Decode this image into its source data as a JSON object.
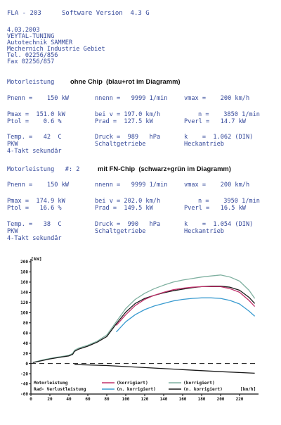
{
  "header": {
    "model": "FLA - 203",
    "software": "Software Version  4.3 G"
  },
  "company": {
    "date": "4.03.2003",
    "line1": "VEYTAL-TUNING",
    "line2": "Autotechnik SAMMER",
    "line3": "Mechernich Industrie Gebiet",
    "tel": "Tel. 02256/856",
    "fax": "Fax 02256/857"
  },
  "run1": {
    "title": "Motorleistung",
    "note": "ohne Chip  (blau+rot im Diagramm)",
    "pnenn": "Pnenn =    150 kW",
    "nnenn": "nnenn =   9999 1/min",
    "vmax": "vmax =    200 km/h",
    "pmax": "Pmax =  151.0 kW",
    "ptol": "Ptol =    0.6 %",
    "beiv": "bei v = 197.0 km/h",
    "prad": "Prad =  127.5 kW",
    "n": "n =    3850 1/min",
    "pverl": "Pverl =   14.7 kW",
    "temp": "Temp. =   42  C",
    "pkw": "PKW",
    "takt": "4-Takt sekundär",
    "druck": "Druck =  989   hPa",
    "getriebe": "Schaltgetriebe",
    "k": "k    =  1.062 (DIN)",
    "antrieb": "Heckantrieb"
  },
  "run2": {
    "title": "Motorleistung   #: 2",
    "note": "mit FN-Chip  (schwarz+grün im Diagramm)",
    "pnenn": "Pnenn =    150 kW",
    "nnenn": "nnenn =   9999 1/min",
    "vmax": "vmax =    200 km/h",
    "pmax": "Pmax =  174.9 kW",
    "ptol": "Ptol =   16.6 %",
    "beiv": "bei v = 202.0 km/h",
    "prad": "Prad =  149.5 kW",
    "n": "n =    3950 1/min",
    "pverl": "Pverl =   16.5 kW",
    "temp": "Temp. =   38  C",
    "pkw": "PKW",
    "takt": "4-Takt sekundär",
    "druck": "Druck =  990   hPa",
    "getriebe": "Schaltgetriebe",
    "k": "k    =  1.054 (DIN)",
    "antrieb": "Heckantrieb"
  },
  "chart_data": {
    "type": "line",
    "y_unit": "[kW]",
    "x_unit": "[km/h]",
    "xlim": [
      0,
      240
    ],
    "ylim": [
      -60,
      200
    ],
    "x_ticks": [
      "0",
      "20",
      "40",
      "60",
      "80",
      "100",
      "120",
      "140",
      "160",
      "180",
      "200",
      "220"
    ],
    "y_ticks": [
      "200",
      "180",
      "160",
      "140",
      "120",
      "100",
      "80",
      "60",
      "40",
      "20",
      "0",
      "-20",
      "-40",
      "-60"
    ],
    "legend": {
      "row1_label": "Motorleistung",
      "row2_label": "Rad- Verlustleistung",
      "korrigiert": "(korrigiert)",
      "nkorrigiert": "(n. korrigiert)"
    },
    "colors": {
      "red": "#c0306a",
      "blue": "#3a9bd0",
      "black": "#1a1a1a",
      "green": "#7fb0a0",
      "axis": "#111111"
    },
    "series": [
      {
        "color": "green",
        "x": [
          2,
          10,
          20,
          30,
          40,
          44,
          46,
          50,
          60,
          70,
          80,
          90,
          100,
          110,
          120,
          130,
          140,
          150,
          160,
          170,
          180,
          190,
          200,
          210,
          220,
          230,
          236
        ],
        "y": [
          2,
          6,
          10,
          13,
          16,
          20,
          26,
          30,
          36,
          44,
          56,
          82,
          108,
          126,
          138,
          147,
          154,
          160,
          164,
          167,
          170,
          172,
          174,
          170,
          162,
          144,
          128
        ]
      },
      {
        "color": "black",
        "x": [
          2,
          10,
          20,
          30,
          40,
          44,
          46,
          50,
          60,
          70,
          80,
          90,
          100,
          110,
          120,
          130,
          140,
          150,
          160,
          170,
          180,
          190,
          200,
          210,
          220,
          230,
          236
        ],
        "y": [
          2,
          5,
          9,
          12,
          15,
          18,
          24,
          28,
          34,
          42,
          53,
          78,
          101,
          118,
          128,
          134,
          139,
          143,
          146,
          149,
          151,
          152,
          152,
          150,
          144,
          130,
          118
        ]
      },
      {
        "color": "red",
        "x": [
          90,
          100,
          110,
          120,
          130,
          140,
          150,
          160,
          170,
          180,
          190,
          200,
          210,
          220,
          230,
          236
        ],
        "y": [
          75,
          96,
          114,
          126,
          134,
          140,
          145,
          148,
          150,
          151,
          151,
          151,
          147,
          140,
          124,
          112
        ]
      },
      {
        "color": "blue",
        "x": [
          90,
          100,
          110,
          120,
          130,
          140,
          150,
          160,
          170,
          180,
          190,
          200,
          210,
          220,
          230,
          236
        ],
        "y": [
          62,
          82,
          96,
          106,
          113,
          118,
          123,
          126,
          128,
          129,
          129,
          128,
          124,
          117,
          103,
          93
        ]
      }
    ]
  }
}
